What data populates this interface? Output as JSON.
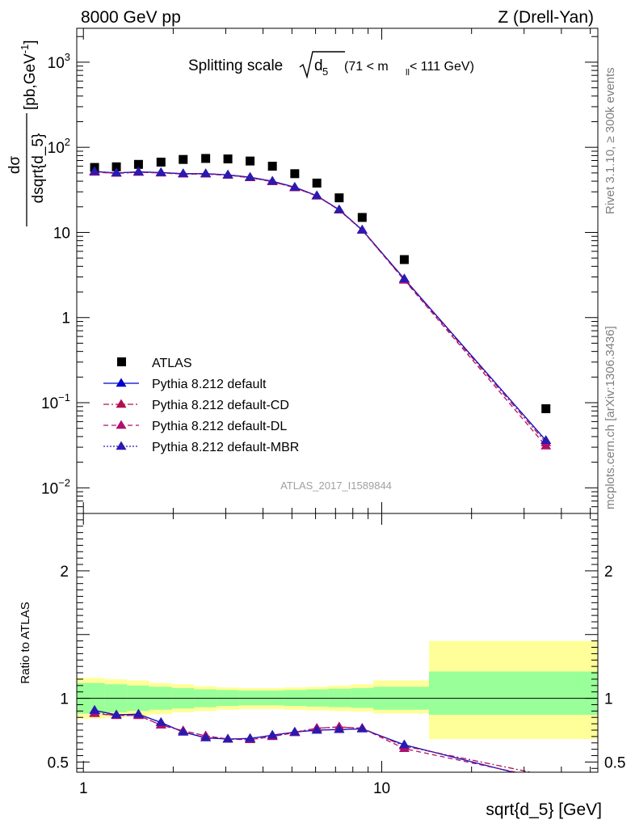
{
  "header": {
    "left": "8000 GeV pp",
    "right": "Z (Drell-Yan)"
  },
  "side_labels": {
    "rivet": "Rivet 3.1.10, ≥ 300k events",
    "mcplots": "mcplots.cern.ch [arXiv:1306.3436]"
  },
  "plot_title": {
    "main": "Splitting scale",
    "var": "d",
    "var_sub": "5",
    "range_pre": "(71 < m",
    "range_sub": "ll",
    "range_post": " < 111 GeV)"
  },
  "watermark": "ATLAS_2017_I1589844",
  "ylabel_top": {
    "num": "dσ",
    "den": "dsqrt{d_5}",
    "units_pre": "[pb,GeV",
    "units_sup": "-1",
    "units_post": "]"
  },
  "ylabel_bottom": "Ratio to ATLAS",
  "xlabel": "sqrt{d_5} [GeV]",
  "legend_placement": "bottom-left",
  "colors": {
    "data": "#000000",
    "default": "#0000cc",
    "cd": "#b0104f",
    "dl": "#b0106f",
    "mbr": "#2a1ab0",
    "band_inner": "#99ff99",
    "band_outer": "#ffff99"
  },
  "chart_data": [
    {
      "type": "scatter",
      "scale": "log-log",
      "xlim": [
        0.95,
        53
      ],
      "ylim": [
        0.005,
        2500
      ],
      "x_tick_labels": [
        "1",
        "10"
      ],
      "y_tick_labels": [
        "10^-2",
        "10^-1",
        "1",
        "10",
        "10^2",
        "10^3"
      ],
      "series": [
        {
          "name": "ATLAS",
          "style": "square",
          "x": [
            1.09,
            1.29,
            1.53,
            1.82,
            2.16,
            2.57,
            3.05,
            3.62,
            4.3,
            5.11,
            6.06,
            7.2,
            8.6,
            11.9,
            35.5
          ],
          "y": [
            58,
            59,
            63,
            67,
            72,
            74,
            73,
            69,
            60,
            49,
            38,
            25.5,
            15,
            4.8,
            0.085
          ]
        },
        {
          "name": "Pythia 8.212 default",
          "style": "solid",
          "x": [
            1.09,
            1.29,
            1.53,
            1.82,
            2.16,
            2.57,
            3.05,
            3.62,
            4.3,
            5.11,
            6.06,
            7.2,
            8.6,
            11.9,
            35.5
          ],
          "y": [
            52,
            50,
            51.5,
            50.5,
            49,
            49,
            47.5,
            44.5,
            40,
            34,
            27,
            18.5,
            10.7,
            2.85,
            0.036
          ]
        },
        {
          "name": "Pythia 8.212 default-CD",
          "style": "dashdot",
          "x": [
            1.09,
            1.29,
            1.53,
            1.82,
            2.16,
            2.57,
            3.05,
            3.62,
            4.3,
            5.11,
            6.06,
            7.2,
            8.6,
            11.9,
            35.5
          ],
          "y": [
            51.5,
            49.5,
            51,
            50,
            48.5,
            48.5,
            47,
            44,
            39.5,
            33.5,
            26.8,
            18.3,
            10.6,
            2.8,
            0.034
          ]
        },
        {
          "name": "Pythia 8.212 default-DL",
          "style": "dashed",
          "x": [
            1.09,
            1.29,
            1.53,
            1.82,
            2.16,
            2.57,
            3.05,
            3.62,
            4.3,
            5.11,
            6.06,
            7.2,
            8.6,
            11.9,
            35.5
          ],
          "y": [
            51,
            49.5,
            51,
            50,
            48.5,
            48.5,
            47,
            44,
            39.5,
            33.5,
            26.8,
            18.3,
            10.6,
            2.75,
            0.031
          ]
        },
        {
          "name": "Pythia 8.212 default-MBR",
          "style": "dotted",
          "x": [
            1.09,
            1.29,
            1.53,
            1.82,
            2.16,
            2.57,
            3.05,
            3.62,
            4.3,
            5.11,
            6.06,
            7.2,
            8.6,
            11.9,
            35.5
          ],
          "y": [
            52,
            50,
            51.5,
            50.5,
            49,
            49,
            47.5,
            44.5,
            40,
            34,
            27,
            18.5,
            10.7,
            2.85,
            0.036
          ]
        }
      ]
    },
    {
      "type": "line",
      "scale": "log-x",
      "xlim": [
        0.95,
        53
      ],
      "ylim": [
        0.42,
        2.45
      ],
      "y_tick_labels": [
        "0.5",
        "1",
        "2"
      ],
      "reference": 1,
      "bands": [
        {
          "x0": 0.95,
          "x1": 1.18,
          "inner": [
            0.88,
            1.12
          ],
          "outer": [
            0.84,
            1.16
          ]
        },
        {
          "x0": 1.18,
          "x1": 1.4,
          "inner": [
            0.89,
            1.11
          ],
          "outer": [
            0.85,
            1.15
          ]
        },
        {
          "x0": 1.4,
          "x1": 1.66,
          "inner": [
            0.9,
            1.1
          ],
          "outer": [
            0.86,
            1.14
          ]
        },
        {
          "x0": 1.66,
          "x1": 1.98,
          "inner": [
            0.91,
            1.09
          ],
          "outer": [
            0.875,
            1.12
          ]
        },
        {
          "x0": 1.98,
          "x1": 2.35,
          "inner": [
            0.92,
            1.08
          ],
          "outer": [
            0.89,
            1.11
          ]
        },
        {
          "x0": 2.35,
          "x1": 2.79,
          "inner": [
            0.93,
            1.07
          ],
          "outer": [
            0.9,
            1.095
          ]
        },
        {
          "x0": 2.79,
          "x1": 3.32,
          "inner": [
            0.94,
            1.065
          ],
          "outer": [
            0.91,
            1.085
          ]
        },
        {
          "x0": 3.32,
          "x1": 3.95,
          "inner": [
            0.945,
            1.06
          ],
          "outer": [
            0.915,
            1.08
          ]
        },
        {
          "x0": 3.95,
          "x1": 4.69,
          "inner": [
            0.945,
            1.06
          ],
          "outer": [
            0.915,
            1.08
          ]
        },
        {
          "x0": 4.69,
          "x1": 5.58,
          "inner": [
            0.94,
            1.065
          ],
          "outer": [
            0.91,
            1.085
          ]
        },
        {
          "x0": 5.58,
          "x1": 6.63,
          "inner": [
            0.935,
            1.07
          ],
          "outer": [
            0.905,
            1.09
          ]
        },
        {
          "x0": 6.63,
          "x1": 7.88,
          "inner": [
            0.93,
            1.075
          ],
          "outer": [
            0.9,
            1.1
          ]
        },
        {
          "x0": 7.88,
          "x1": 9.37,
          "inner": [
            0.925,
            1.08
          ],
          "outer": [
            0.895,
            1.11
          ]
        },
        {
          "x0": 9.37,
          "x1": 14.4,
          "inner": [
            0.91,
            1.09
          ],
          "outer": [
            0.88,
            1.14
          ]
        },
        {
          "x0": 14.4,
          "x1": 53,
          "inner": [
            0.87,
            1.21
          ],
          "outer": [
            0.68,
            1.45
          ]
        }
      ],
      "series": [
        {
          "name": "Pythia 8.212 default",
          "style": "solid",
          "x": [
            1.09,
            1.29,
            1.53,
            1.82,
            2.16,
            2.57,
            3.05,
            3.62,
            4.3,
            5.11,
            6.06,
            7.2,
            8.6,
            11.9,
            35.5
          ],
          "y": [
            0.905,
            0.87,
            0.875,
            0.81,
            0.735,
            0.69,
            0.68,
            0.685,
            0.71,
            0.735,
            0.75,
            0.755,
            0.76,
            0.635,
            0.355
          ]
        },
        {
          "name": "Pythia 8.212 default-CD",
          "style": "dashdot",
          "x": [
            1.09,
            1.29,
            1.53,
            1.82,
            2.16,
            2.57,
            3.05,
            3.62,
            4.3,
            5.11,
            6.06,
            7.2,
            8.6,
            11.9,
            35.5
          ],
          "y": [
            0.885,
            0.865,
            0.865,
            0.79,
            0.745,
            0.705,
            0.68,
            0.675,
            0.7,
            0.735,
            0.765,
            0.775,
            0.765,
            0.625,
            0.395
          ]
        },
        {
          "name": "Pythia 8.212 default-DL",
          "style": "dashed",
          "x": [
            1.09,
            1.29,
            1.53,
            1.82,
            2.16,
            2.57,
            3.05,
            3.62,
            4.3,
            5.11,
            6.06,
            7.2,
            8.6,
            11.9,
            35.5
          ],
          "y": [
            0.88,
            0.865,
            0.865,
            0.79,
            0.745,
            0.705,
            0.68,
            0.675,
            0.7,
            0.73,
            0.765,
            0.775,
            0.765,
            0.605,
            0.37
          ]
        },
        {
          "name": "Pythia 8.212 default-MBR",
          "style": "dotted",
          "x": [
            1.09,
            1.29,
            1.53,
            1.82,
            2.16,
            2.57,
            3.05,
            3.62,
            4.3,
            5.11,
            6.06,
            7.2,
            8.6,
            11.9,
            35.5
          ],
          "y": [
            0.905,
            0.87,
            0.875,
            0.81,
            0.735,
            0.69,
            0.68,
            0.685,
            0.71,
            0.735,
            0.75,
            0.755,
            0.76,
            0.635,
            0.355
          ]
        }
      ]
    }
  ]
}
